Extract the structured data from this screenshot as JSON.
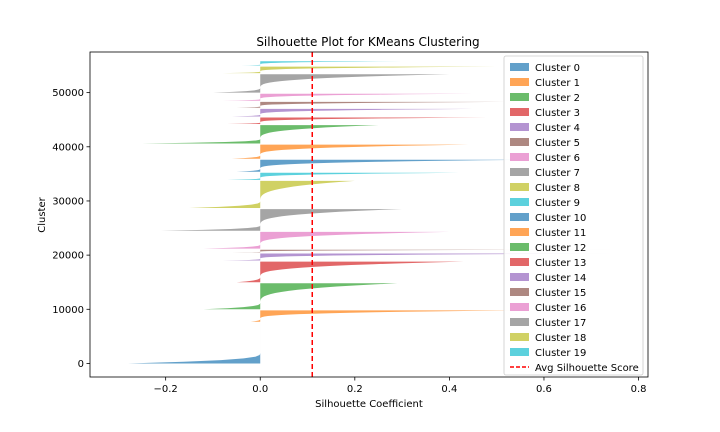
{
  "chart_data": {
    "type": "area",
    "title": "Silhouette Plot for KMeans Clustering",
    "xlabel": "Silhouette Coefficient",
    "ylabel": "Cluster",
    "xlim": [
      -0.36,
      0.82
    ],
    "ylim": [
      -2500,
      57500
    ],
    "xticks": [
      "−0.2",
      "0.0",
      "0.2",
      "0.4",
      "0.6",
      "0.8"
    ],
    "xtick_values": [
      -0.2,
      0.0,
      0.2,
      0.4,
      0.6,
      0.8
    ],
    "yticks": [
      "0",
      "10000",
      "20000",
      "30000",
      "40000",
      "50000"
    ],
    "ytick_values": [
      0,
      10000,
      20000,
      30000,
      40000,
      50000
    ],
    "avg_silhouette_score": 0.11,
    "avg_line_label": "Avg Silhouette Score",
    "avg_line_color": "#ff0000",
    "legend_position": "upper right",
    "grid": false,
    "series": [
      {
        "name": "Cluster 0",
        "color": "#1f77b4",
        "y_start": 0,
        "y_end": 7500,
        "min": -0.28,
        "max": 0.0
      },
      {
        "name": "Cluster 1",
        "color": "#ff7f0e",
        "y_start": 7700,
        "y_end": 9800,
        "min": -0.02,
        "max": 0.54
      },
      {
        "name": "Cluster 2",
        "color": "#2ca02c",
        "y_start": 10000,
        "y_end": 14800,
        "min": -0.12,
        "max": 0.29
      },
      {
        "name": "Cluster 3",
        "color": "#d62728",
        "y_start": 15000,
        "y_end": 18800,
        "min": -0.05,
        "max": 0.43
      },
      {
        "name": "Cluster 4",
        "color": "#9467bd",
        "y_start": 19000,
        "y_end": 20300,
        "min": -0.08,
        "max": 0.75
      },
      {
        "name": "Cluster 5",
        "color": "#8c564b",
        "y_start": 20500,
        "y_end": 21000,
        "min": -0.06,
        "max": 0.76
      },
      {
        "name": "Cluster 6",
        "color": "#e377c2",
        "y_start": 21200,
        "y_end": 24300,
        "min": -0.12,
        "max": 0.4
      },
      {
        "name": "Cluster 7",
        "color": "#7f7f7f",
        "y_start": 24500,
        "y_end": 28500,
        "min": -0.21,
        "max": 0.3
      },
      {
        "name": "Cluster 8",
        "color": "#bcbd22",
        "y_start": 28700,
        "y_end": 33700,
        "min": -0.15,
        "max": 0.2
      },
      {
        "name": "Cluster 9",
        "color": "#17becf",
        "y_start": 33900,
        "y_end": 35200,
        "min": -0.07,
        "max": 0.42
      },
      {
        "name": "Cluster 10",
        "color": "#1f77b4",
        "y_start": 35400,
        "y_end": 37600,
        "min": -0.05,
        "max": 0.56
      },
      {
        "name": "Cluster 11",
        "color": "#ff7f0e",
        "y_start": 37800,
        "y_end": 40400,
        "min": -0.06,
        "max": 0.44
      },
      {
        "name": "Cluster 12",
        "color": "#2ca02c",
        "y_start": 40600,
        "y_end": 44000,
        "min": -0.25,
        "max": 0.25
      },
      {
        "name": "Cluster 13",
        "color": "#d62728",
        "y_start": 44200,
        "y_end": 45400,
        "min": -0.07,
        "max": 0.48
      },
      {
        "name": "Cluster 14",
        "color": "#9467bd",
        "y_start": 45600,
        "y_end": 47000,
        "min": -0.06,
        "max": 0.45
      },
      {
        "name": "Cluster 15",
        "color": "#8c564b",
        "y_start": 47200,
        "y_end": 48300,
        "min": -0.05,
        "max": 0.52
      },
      {
        "name": "Cluster 16",
        "color": "#e377c2",
        "y_start": 48500,
        "y_end": 49800,
        "min": -0.08,
        "max": 0.45
      },
      {
        "name": "Cluster 17",
        "color": "#7f7f7f",
        "y_start": 50000,
        "y_end": 53400,
        "min": -0.1,
        "max": 0.4
      },
      {
        "name": "Cluster 18",
        "color": "#bcbd22",
        "y_start": 53600,
        "y_end": 54800,
        "min": -0.08,
        "max": 0.5
      },
      {
        "name": "Cluster 19",
        "color": "#17becf",
        "y_start": 55000,
        "y_end": 55800,
        "min": -0.04,
        "max": 0.3
      }
    ]
  }
}
